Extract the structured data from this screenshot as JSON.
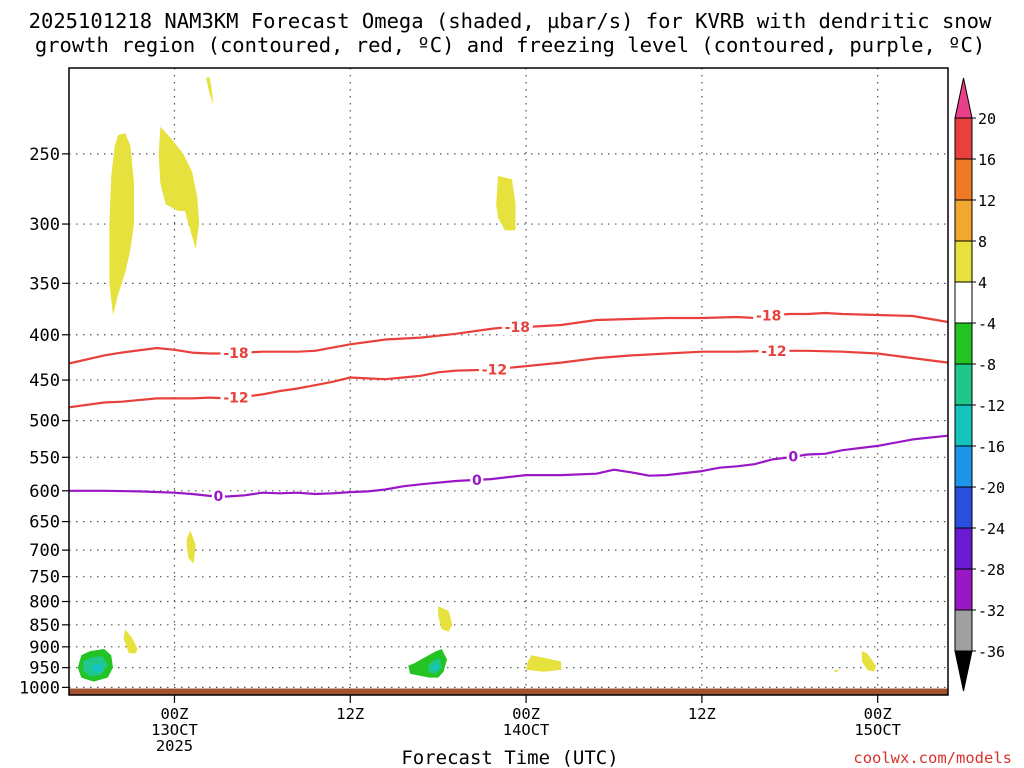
{
  "chart_data": {
    "type": "contour",
    "title_line1": "2025101218 NAM3KM Forecast Omega (shaded, µbar/s) for KVRB with dendritic snow",
    "title_line2": "growth region (contoured, red, ºC) and freezing level (contoured, purple, ºC)",
    "xlabel": "Forecast Time (UTC)",
    "credit": "coolwx.com/models",
    "x_range_hours": [
      -6,
      44
    ],
    "ylim_hpa": [
      1020,
      200
    ],
    "y_ticks": [
      250,
      300,
      350,
      400,
      450,
      500,
      550,
      600,
      650,
      700,
      750,
      800,
      850,
      900,
      950,
      1000
    ],
    "y_tick_labels": [
      "250",
      "300",
      "350",
      "400",
      "450",
      "500",
      "550",
      "600",
      "650",
      "700",
      "750",
      "800",
      "850",
      "900",
      "950",
      "1000"
    ],
    "x_ticks": [
      {
        "hour": 0,
        "l1": "00Z",
        "l2": "13OCT",
        "l3": "2025"
      },
      {
        "hour": 10,
        "l1": "12Z",
        "l2": "",
        "l3": ""
      },
      {
        "hour": 20,
        "l1": "00Z",
        "l2": "14OCT",
        "l3": ""
      },
      {
        "hour": 30,
        "l1": "12Z",
        "l2": "",
        "l3": ""
      },
      {
        "hour": 40,
        "l1": "00Z",
        "l2": "15OCT",
        "l3": ""
      }
    ],
    "contours": [
      {
        "name": "-18 C",
        "label": "-18",
        "color": "#e8413b",
        "x": [
          -6,
          -4,
          -3,
          -1,
          0,
          1,
          2,
          3,
          4,
          5,
          6,
          7,
          8,
          10,
          12,
          14,
          16,
          18,
          19,
          20,
          21,
          22,
          24,
          26,
          28,
          30,
          32,
          33,
          34,
          35,
          36,
          37,
          38,
          40,
          42,
          43,
          44
        ],
        "p": [
          431,
          422,
          419,
          414,
          416,
          419,
          420,
          420,
          419,
          418,
          418,
          418,
          417,
          410,
          405,
          403,
          399,
          394,
          392,
          392,
          391,
          390,
          385,
          384,
          383,
          383,
          382,
          383,
          380,
          379,
          379,
          378,
          379,
          380,
          381,
          384,
          387
        ],
        "labels": [
          {
            "x": 3.5,
            "text": "-18"
          },
          {
            "x": 19.5,
            "text": "-18"
          },
          {
            "x": 33.8,
            "text": "-18"
          }
        ]
      },
      {
        "name": "-12 C",
        "label": "-12",
        "color": "#e8413b",
        "x": [
          -6,
          -4,
          -3,
          -1,
          0,
          1,
          2,
          3,
          4,
          5,
          6,
          7,
          8,
          9,
          10,
          11,
          12,
          13,
          14,
          15,
          16,
          18,
          20,
          22,
          24,
          26,
          28,
          30,
          32,
          34,
          36,
          38,
          40,
          42,
          44
        ],
        "p": [
          483,
          477,
          476,
          472,
          472,
          472,
          471,
          472,
          470,
          467,
          463,
          460,
          456,
          452,
          447,
          448,
          449,
          447,
          445,
          441,
          439,
          438,
          434,
          430,
          425,
          422,
          420,
          418,
          418,
          417,
          417,
          418,
          420,
          425,
          430
        ],
        "labels": [
          {
            "x": 3.5,
            "text": "-12"
          },
          {
            "x": 18.2,
            "text": "-12"
          },
          {
            "x": 34.1,
            "text": "-12"
          }
        ]
      },
      {
        "name": "0 C freezing level",
        "label": "0",
        "color": "#9a17c6",
        "x": [
          -6,
          -4,
          -2,
          0,
          1,
          2,
          3,
          4,
          5,
          6,
          7,
          8,
          9,
          10,
          11,
          12,
          13,
          14,
          16,
          18,
          20,
          22,
          24,
          25,
          26,
          27,
          28,
          30,
          31,
          32,
          33,
          34,
          35,
          36,
          37,
          38,
          40,
          42,
          44
        ],
        "p": [
          600,
          600,
          601,
          603,
          605,
          608,
          609,
          607,
          603,
          604,
          603,
          605,
          604,
          602,
          601,
          598,
          593,
          590,
          585,
          582,
          576,
          576,
          574,
          568,
          572,
          577,
          576,
          570,
          565,
          563,
          560,
          553,
          550,
          546,
          545,
          540,
          534,
          525,
          520
        ],
        "labels": [
          {
            "x": 2.5,
            "text": "0"
          },
          {
            "x": 17.2,
            "text": "0"
          },
          {
            "x": 35.2,
            "text": "0"
          }
        ]
      }
    ],
    "omega_regions": [
      {
        "value_band": "4 to 8",
        "color": "#e6e13c",
        "x": [
          2.0,
          2.1,
          2.2,
          2.0,
          1.8
        ],
        "p": [
          205,
          210,
          220,
          214,
          205
        ]
      },
      {
        "value_band": "4 to 8",
        "color": "#e6e13c",
        "x": [
          -3.2,
          -2.8,
          -2.5,
          -2.3,
          -2.3,
          -2.5,
          -2.8,
          -3.2,
          -3.5,
          -3.7,
          -3.7,
          -3.6,
          -3.4
        ],
        "p": [
          238,
          237,
          245,
          270,
          300,
          320,
          340,
          360,
          380,
          350,
          300,
          265,
          245
        ]
      },
      {
        "value_band": "4 to 8",
        "color": "#e6e13c",
        "x": [
          -0.8,
          -0.2,
          0.5,
          1.0,
          1.3,
          1.4,
          1.2,
          0.8,
          0.6,
          0.2,
          -0.5,
          -0.8,
          -0.9
        ],
        "p": [
          233,
          240,
          250,
          262,
          280,
          300,
          320,
          300,
          290,
          290,
          285,
          270,
          250
        ]
      },
      {
        "value_band": "4 to 8",
        "color": "#e6e13c",
        "x": [
          18.5,
          19.2,
          19.4,
          19.4,
          18.8,
          18.4,
          18.3,
          18.4
        ],
        "p": [
          265,
          267,
          285,
          305,
          305,
          295,
          285,
          265
        ]
      },
      {
        "value_band": "4 to 8",
        "color": "#e6e13c",
        "x": [
          0.9,
          1.2,
          1.1,
          0.8,
          0.7,
          0.7
        ],
        "p": [
          665,
          690,
          725,
          715,
          695,
          680
        ]
      },
      {
        "value_band": "4 to 8",
        "color": "#e6e13c",
        "x": [
          -2.8,
          -2.4,
          -2.1,
          -2.2,
          -2.6,
          -2.9
        ],
        "p": [
          860,
          880,
          905,
          915,
          915,
          880
        ]
      },
      {
        "value_band": "4 to 8",
        "color": "#e6e13c",
        "x": [
          15.0,
          15.6,
          15.8,
          15.6,
          15.2,
          15.0
        ],
        "p": [
          810,
          820,
          850,
          865,
          860,
          830
        ]
      },
      {
        "value_band": "4 to 8",
        "color": "#e6e13c",
        "x": [
          20.3,
          20.9,
          22.0,
          22.0,
          21.0,
          20.0,
          20.1
        ],
        "p": [
          920,
          925,
          935,
          955,
          960,
          955,
          935
        ]
      },
      {
        "value_band": "4 to 8",
        "color": "#e6e13c",
        "x": [
          39.1,
          39.4,
          39.9,
          39.8,
          39.4,
          39.1
        ],
        "p": [
          910,
          915,
          945,
          960,
          955,
          935
        ]
      },
      {
        "value_band": "4 to 8",
        "color": "#e6e13c",
        "x": [
          37.6,
          37.8,
          37.7,
          37.5
        ],
        "p": [
          955,
          955,
          960,
          960
        ]
      },
      {
        "value_band": "-4 to -8",
        "color": "#22c322",
        "x": [
          -4.8,
          -4.0,
          -3.6,
          -3.5,
          -3.8,
          -4.6,
          -5.3,
          -5.5,
          -5.3
        ],
        "p": [
          910,
          905,
          920,
          950,
          975,
          985,
          975,
          950,
          920
        ]
      },
      {
        "value_band": "-8 to -12",
        "color": "#20c78a",
        "x": [
          -4.7,
          -4.1,
          -3.8,
          -4.2,
          -4.8,
          -5.2,
          -5.2
        ],
        "p": [
          925,
          922,
          945,
          968,
          972,
          958,
          935
        ]
      },
      {
        "value_band": "-12 to -16",
        "color": "#14c4bd",
        "x": [
          -4.5,
          -4.1,
          -4.1,
          -4.5,
          -4.8
        ],
        "p": [
          940,
          940,
          958,
          962,
          952
        ]
      },
      {
        "value_band": "-4 to -8",
        "color": "#22c322",
        "x": [
          14.8,
          15.2,
          15.5,
          15.3,
          15.0,
          14.5,
          13.4,
          13.3,
          13.6
        ],
        "p": [
          912,
          905,
          930,
          960,
          975,
          975,
          965,
          945,
          940
        ]
      },
      {
        "value_band": "-8 to -12",
        "color": "#20c78a",
        "x": [
          14.8,
          15.1,
          15.2,
          14.9,
          14.5,
          14.4
        ],
        "p": [
          930,
          928,
          950,
          965,
          962,
          945
        ]
      },
      {
        "value_band": "-12 to -16",
        "color": "#14c4bd",
        "x": [
          14.8,
          15.0,
          15.0,
          14.7,
          14.6
        ],
        "p": [
          942,
          942,
          955,
          958,
          950
        ]
      }
    ],
    "surface": {
      "name": "ground",
      "color": "#a0522d",
      "p_top": 1003
    },
    "colorbar": {
      "labels": [
        "20",
        "16",
        "12",
        "8",
        "4",
        "-4",
        "-8",
        "-12",
        "-16",
        "-20",
        "-24",
        "-28",
        "-32",
        "-36"
      ],
      "colors": [
        "#e8418a",
        "#e8413b",
        "#ee7a26",
        "#f0a830",
        "#e6e13c",
        "#ffffff",
        "#22c322",
        "#20c78a",
        "#14c4bd",
        "#1e96e8",
        "#2850dc",
        "#6a1ad0",
        "#9a17c6",
        "#a0a0a0",
        "#000000"
      ]
    }
  }
}
